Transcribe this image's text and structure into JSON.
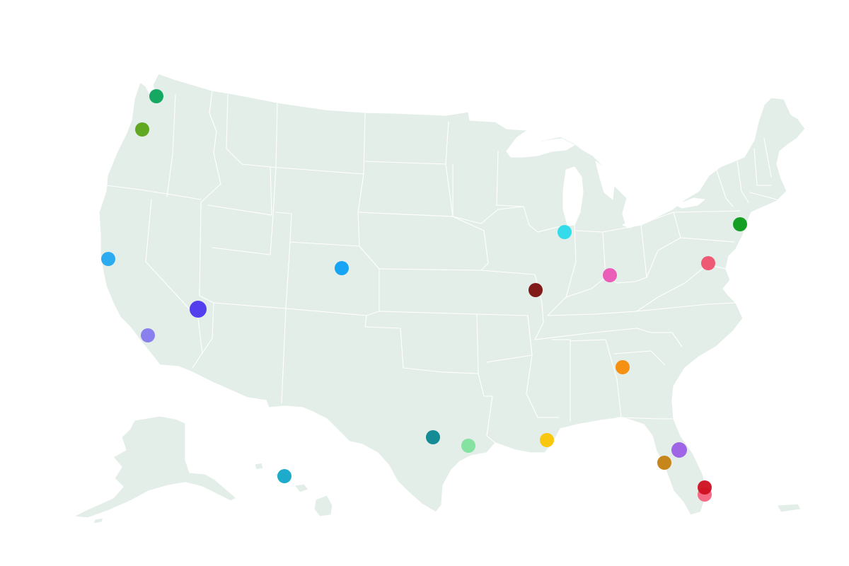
{
  "map": {
    "land_color": "#e4eee8",
    "border_color": "#ffffff",
    "water_color": "#ffffff",
    "background_color": "#ffffff",
    "markers": [
      {
        "id": "seattle",
        "color": "#0aa35a",
        "size": "normal"
      },
      {
        "id": "portland",
        "color": "#5aa317",
        "size": "normal"
      },
      {
        "id": "san-francisco",
        "color": "#23a7f0",
        "size": "normal"
      },
      {
        "id": "las-vegas",
        "color": "#4b35ee",
        "size": "large"
      },
      {
        "id": "los-angeles",
        "color": "#8479ee",
        "size": "normal"
      },
      {
        "id": "denver",
        "color": "#0c9ff5",
        "size": "normal"
      },
      {
        "id": "chicago",
        "color": "#2ad9ea",
        "size": "normal"
      },
      {
        "id": "st-louis",
        "color": "#7a0f0f",
        "size": "normal"
      },
      {
        "id": "cincinnati",
        "color": "#ea54b5",
        "size": "normal"
      },
      {
        "id": "washington-dc",
        "color": "#ee506e",
        "size": "normal"
      },
      {
        "id": "new-york",
        "color": "#0a9a19",
        "size": "normal"
      },
      {
        "id": "atlanta",
        "color": "#f78a07",
        "size": "normal"
      },
      {
        "id": "new-orleans",
        "color": "#fbc403",
        "size": "normal"
      },
      {
        "id": "san-antonio",
        "color": "#0a8590",
        "size": "normal"
      },
      {
        "id": "houston",
        "color": "#7fe09c",
        "size": "normal"
      },
      {
        "id": "orlando",
        "color": "#9a5de6",
        "size": "normal"
      },
      {
        "id": "tampa",
        "color": "#c47f10",
        "size": "normal"
      },
      {
        "id": "fort-lauderdale",
        "color": "#cf1020",
        "size": "normal"
      },
      {
        "id": "miami",
        "color": "#f5627e",
        "size": "normal"
      },
      {
        "id": "honolulu",
        "color": "#12a7c9",
        "size": "normal"
      }
    ]
  }
}
